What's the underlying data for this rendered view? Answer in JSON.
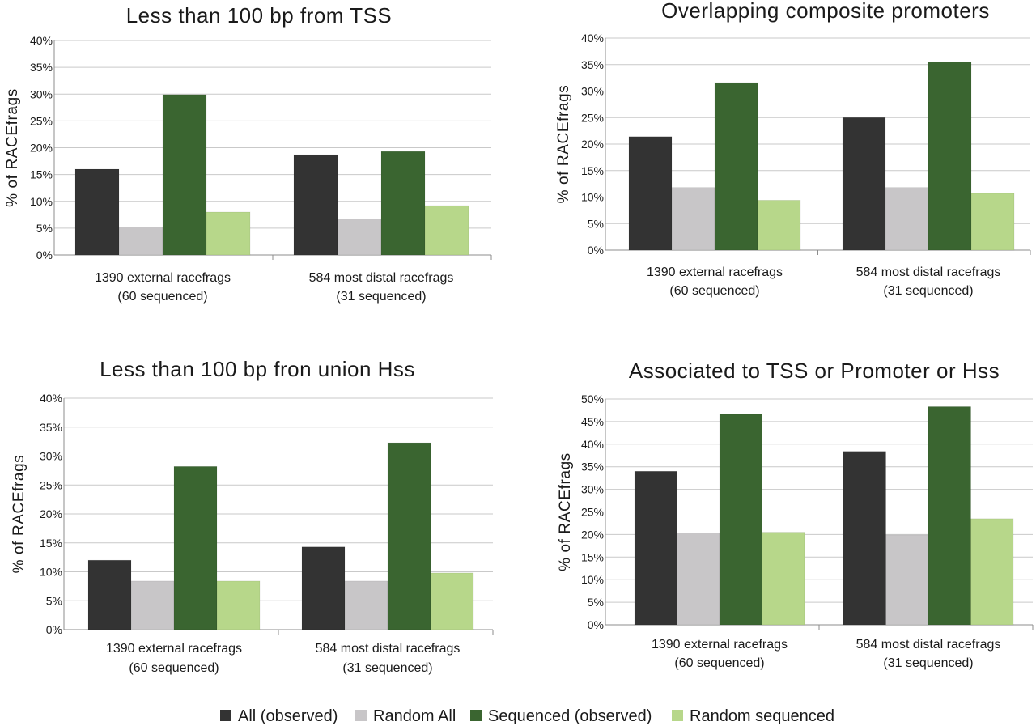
{
  "legend": [
    {
      "label": "All (observed)",
      "color": "#333333"
    },
    {
      "label": "Random All",
      "color": "#c8c6c8"
    },
    {
      "label": "Sequenced (observed)",
      "color": "#3a6530"
    },
    {
      "label": "Random sequenced",
      "color": "#b7d78a"
    }
  ],
  "chart_data": [
    {
      "type": "bar",
      "title": "Less than 100 bp from TSS",
      "ylabel": "% of RACEfrags",
      "ylim": [
        0,
        40
      ],
      "yticks": [
        0,
        5,
        10,
        15,
        20,
        25,
        30,
        35,
        40
      ],
      "ytick_suffix": "%",
      "grid": true,
      "categories": [
        [
          "1390 external racefrags",
          "(60 sequenced)"
        ],
        [
          "584 most distal racefrags",
          "(31 sequenced)"
        ]
      ],
      "series": [
        {
          "name": "All (observed)",
          "color": "#333333",
          "values": [
            16,
            18.7
          ]
        },
        {
          "name": "Random All",
          "color": "#c8c6c8",
          "values": [
            5.2,
            6.7
          ]
        },
        {
          "name": "Sequenced (observed)",
          "color": "#3a6530",
          "values": [
            29.9,
            19.3
          ]
        },
        {
          "name": "Random sequenced",
          "color": "#b7d78a",
          "values": [
            8,
            9.2
          ]
        }
      ]
    },
    {
      "type": "bar",
      "title": "Overlapping composite promoters",
      "ylabel": "% of RACEfrags",
      "ylim": [
        0,
        40
      ],
      "yticks": [
        0,
        5,
        10,
        15,
        20,
        25,
        30,
        35,
        40
      ],
      "ytick_suffix": "%",
      "grid": true,
      "categories": [
        [
          "1390 external racefrags",
          "(60 sequenced)"
        ],
        [
          "584 most distal racefrags",
          "(31 sequenced)"
        ]
      ],
      "series": [
        {
          "name": "All (observed)",
          "color": "#333333",
          "values": [
            21.4,
            25
          ]
        },
        {
          "name": "Random All",
          "color": "#c8c6c8",
          "values": [
            11.8,
            11.8
          ]
        },
        {
          "name": "Sequenced (observed)",
          "color": "#3a6530",
          "values": [
            31.6,
            35.5
          ]
        },
        {
          "name": "Random sequenced",
          "color": "#b7d78a",
          "values": [
            9.4,
            10.7
          ]
        }
      ]
    },
    {
      "type": "bar",
      "title": "Less than 100 bp fron union Hss",
      "ylabel": "% of RACEfrags",
      "ylim": [
        0,
        40
      ],
      "yticks": [
        0,
        5,
        10,
        15,
        20,
        25,
        30,
        35,
        40
      ],
      "ytick_suffix": "%",
      "grid": true,
      "categories": [
        [
          "1390 external racefrags",
          "(60 sequenced)"
        ],
        [
          "584 most distal racefrags",
          "(31 sequenced)"
        ]
      ],
      "series": [
        {
          "name": "All (observed)",
          "color": "#333333",
          "values": [
            12,
            14.3
          ]
        },
        {
          "name": "Random All",
          "color": "#c8c6c8",
          "values": [
            8.4,
            8.4
          ]
        },
        {
          "name": "Sequenced (observed)",
          "color": "#3a6530",
          "values": [
            28.2,
            32.3
          ]
        },
        {
          "name": "Random sequenced",
          "color": "#b7d78a",
          "values": [
            8.4,
            9.8
          ]
        }
      ]
    },
    {
      "type": "bar",
      "title": "Associated to TSS or Promoter or Hss",
      "ylabel": "% of RACEfrags",
      "ylim": [
        0,
        50
      ],
      "yticks": [
        0,
        5,
        10,
        15,
        20,
        25,
        30,
        35,
        40,
        45,
        50
      ],
      "ytick_suffix": "%",
      "grid": true,
      "categories": [
        [
          "1390 external racefrags",
          "(60 sequenced)"
        ],
        [
          "584 most distal racefrags",
          "(31 sequenced)"
        ]
      ],
      "series": [
        {
          "name": "All (observed)",
          "color": "#333333",
          "values": [
            34,
            38.4
          ]
        },
        {
          "name": "Random All",
          "color": "#c8c6c8",
          "values": [
            20.3,
            19.9
          ]
        },
        {
          "name": "Sequenced (observed)",
          "color": "#3a6530",
          "values": [
            46.6,
            48.3
          ]
        },
        {
          "name": "Random sequenced",
          "color": "#b7d78a",
          "values": [
            20.5,
            23.5
          ]
        }
      ]
    }
  ]
}
